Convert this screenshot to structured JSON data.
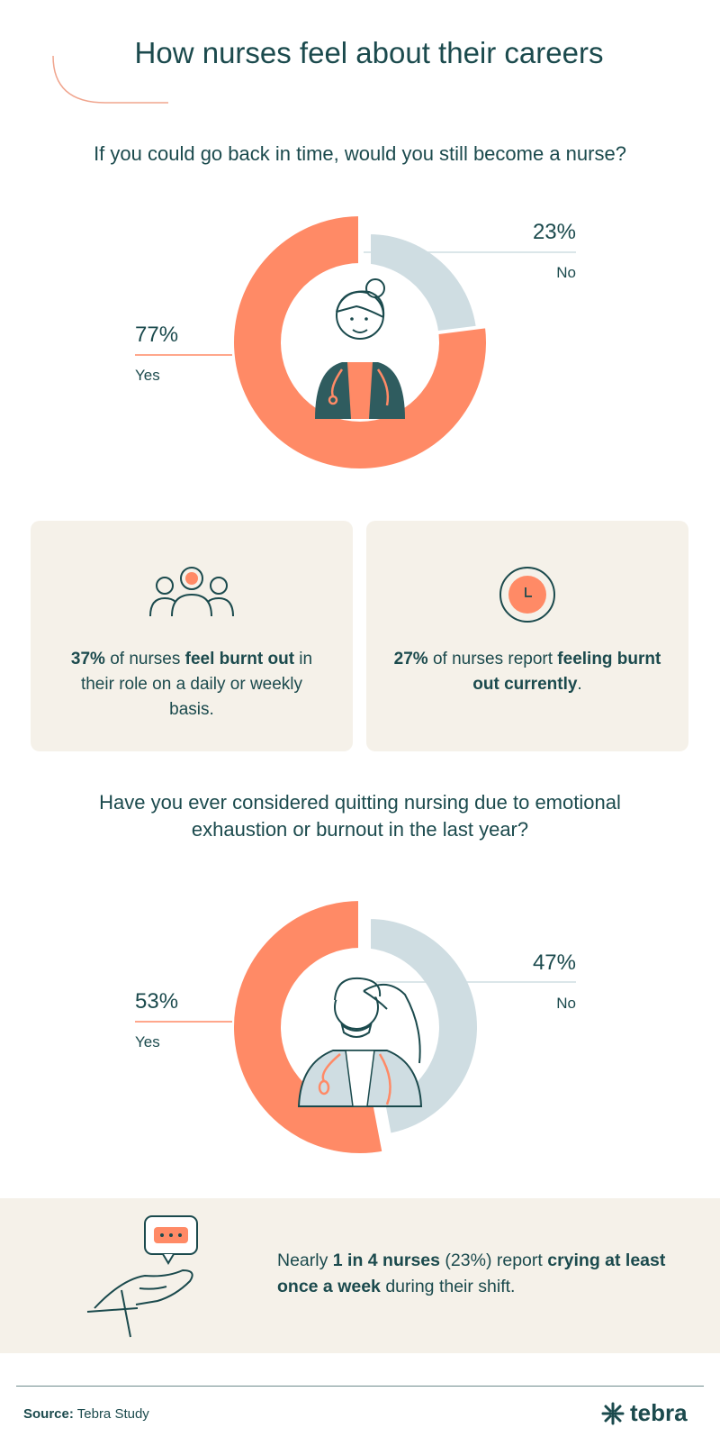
{
  "title": "How nurses feel about their careers",
  "colors": {
    "yes": "#ff8a66",
    "no": "#cfdde2",
    "text": "#1b4a4d",
    "card": "#f5f1e9"
  },
  "chart_data": [
    {
      "type": "pie",
      "title": "If you could go back in time, would you still become a nurse?",
      "categories": [
        "Yes",
        "No"
      ],
      "values": [
        77,
        23
      ],
      "labels": [
        "77%",
        "23%"
      ]
    },
    {
      "type": "pie",
      "title": "Have you ever considered quitting nursing due to emotional exhaustion or burnout in the last year?",
      "categories": [
        "Yes",
        "No"
      ],
      "values": [
        53,
        47
      ],
      "labels": [
        "53%",
        "47%"
      ]
    }
  ],
  "cards": [
    {
      "icon": "people-group-icon",
      "parts": [
        "37%",
        " of nurses ",
        "feel burnt out",
        " in their role on a daily or weekly basis."
      ]
    },
    {
      "icon": "clock-icon",
      "parts": [
        "27%",
        " of nurses report ",
        "feeling burnt out currently",
        "."
      ]
    }
  ],
  "banner": {
    "icon": "hand-speech-bubble-icon",
    "parts": [
      "Nearly ",
      "1 in 4 nurses",
      " (23%) report ",
      "crying at least once a week",
      " during their shift."
    ]
  },
  "footer": {
    "source_label": "Source:",
    "source_value": " Tebra Study",
    "logo_text": "tebra",
    "logo_icon": "tebra-logo-icon"
  }
}
